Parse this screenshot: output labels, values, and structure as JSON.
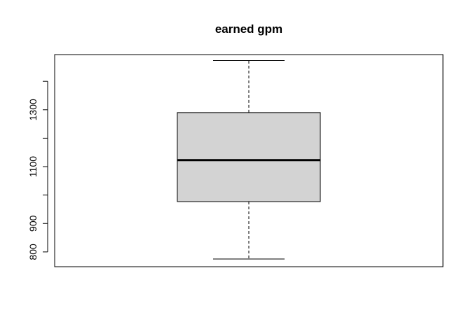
{
  "chart_data": {
    "type": "boxplot",
    "title": "earned gpm",
    "xlabel": "",
    "ylabel": "",
    "ylim": [
      748,
      1494
    ],
    "yticks": [
      800,
      900,
      1000,
      1100,
      1200,
      1300,
      1400
    ],
    "ytick_labels": [
      "800",
      "900",
      "",
      "1100",
      "",
      "1300",
      ""
    ],
    "box": {
      "whisker_low": 775,
      "q1": 977,
      "median": 1123,
      "q3": 1290,
      "whisker_high": 1473
    },
    "grid": false,
    "box_fill": "#d3d3d3",
    "line_color": "#000000"
  }
}
